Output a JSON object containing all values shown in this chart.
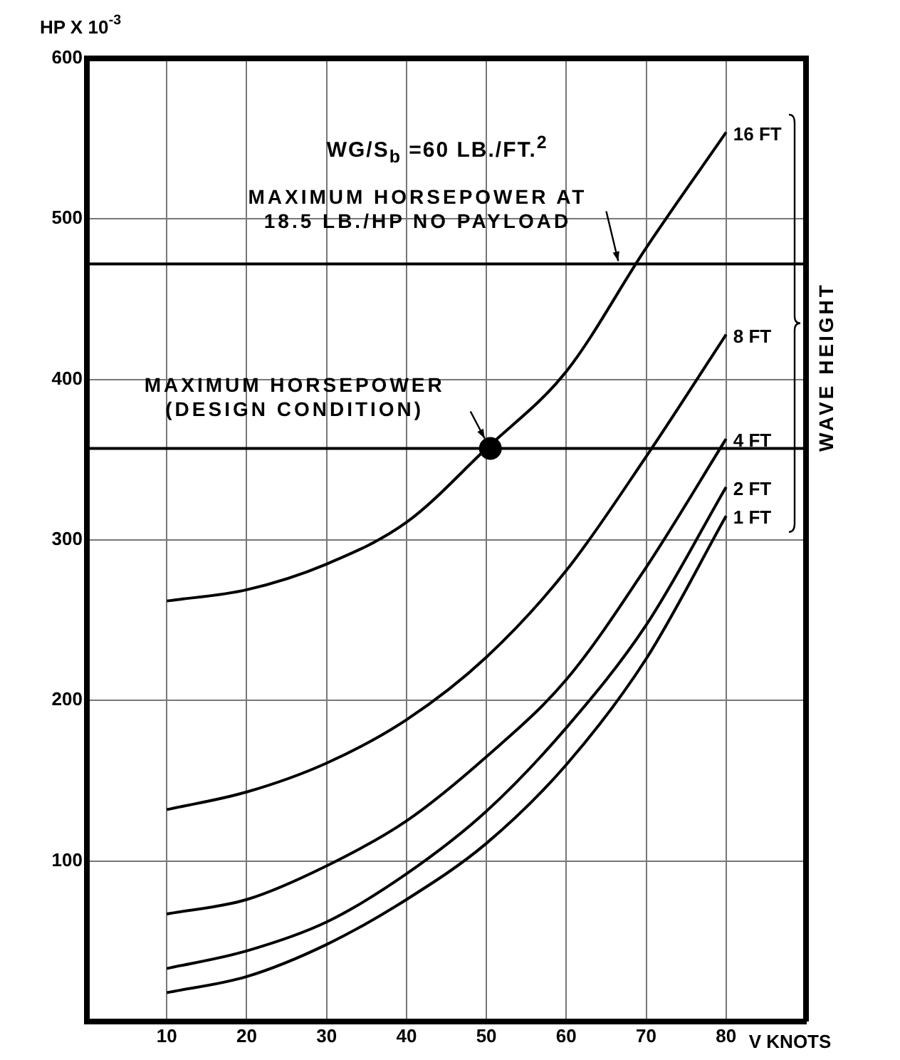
{
  "chart_data": {
    "type": "line",
    "xlabel": "V KNOTS",
    "ylabel": "HP X 10$^{-3}$",
    "xlim": [
      0,
      90
    ],
    "ylim": [
      0,
      600
    ],
    "xticks": [
      {
        "value": 0,
        "label": null
      },
      10,
      20,
      30,
      40,
      50,
      60,
      70,
      80,
      {
        "value": 90,
        "label": null
      }
    ],
    "yticks": [
      {
        "value": 0,
        "label": null
      },
      100,
      200,
      300,
      400,
      500,
      600
    ],
    "x": [
      10,
      20,
      30,
      40,
      50,
      60,
      70,
      80
    ],
    "series": [
      {
        "name": "16 FT",
        "color": "#000000",
        "values": [
          262,
          269,
          285,
          311,
          357,
          405,
          482,
          554
        ]
      },
      {
        "name": "8 FT",
        "color": "#000000",
        "values": [
          132,
          143,
          161,
          188,
          227,
          281,
          352,
          428
        ]
      },
      {
        "name": "4 FT",
        "color": "#000000",
        "values": [
          67,
          76,
          97,
          125,
          165,
          213,
          283,
          363
        ]
      },
      {
        "name": "2 FT",
        "color": "#000000",
        "values": [
          33,
          44,
          62,
          92,
          131,
          183,
          247,
          333
        ]
      },
      {
        "name": "1 FT",
        "color": "#000000",
        "values": [
          18,
          28,
          48,
          76,
          111,
          160,
          226,
          315
        ]
      },
      {
        "type": "scatter",
        "marker": "circle",
        "color": "#000000",
        "x": [
          50.5
        ],
        "values": [
          357
        ]
      }
    ],
    "ref_lines": [
      {
        "axis": "y",
        "value": 472,
        "label": "MAXIMUM HORSEPOWER AT 18.5 LB./HP NO PAYLOAD",
        "color": "#000000"
      },
      {
        "axis": "y",
        "value": 357,
        "label": "MAXIMUM HORSEPOWER (DESIGN CONDITION)",
        "color": "#000000"
      }
    ],
    "annotations": [
      "WG/S$_{b}$ =60 LB./FT.$^{2}$",
      "WAVE HEIGHT"
    ],
    "grid": true,
    "legend": false,
    "marker": "none",
    "line_style": "solid"
  }
}
